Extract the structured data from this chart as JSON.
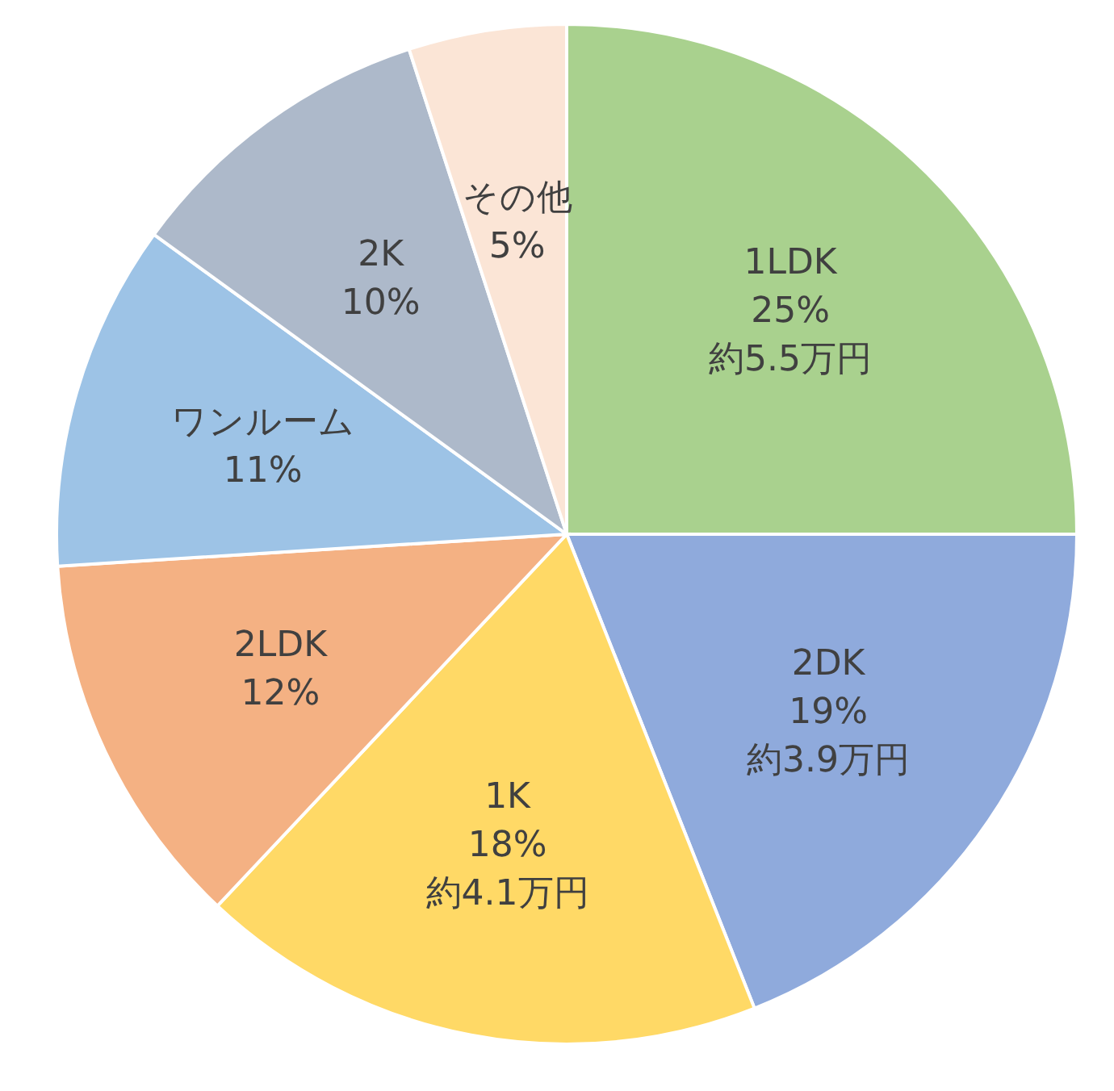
{
  "chart_data": {
    "type": "pie",
    "categories": [
      "1LDK",
      "2DK",
      "1K",
      "2LDK",
      "ワンルーム",
      "2K",
      "その他"
    ],
    "values": [
      25,
      19,
      18,
      12,
      11,
      10,
      5
    ],
    "colors": [
      "#a9d18e",
      "#8faadc",
      "#ffd966",
      "#f4b183",
      "#9dc3e6",
      "#adb9ca",
      "#fbe5d6"
    ],
    "value_labels": [
      "25%",
      "19%",
      "18%",
      "12%",
      "11%",
      "10%",
      "5%"
    ],
    "annotations": [
      {
        "text": "約5.5万円",
        "x": "1LDK"
      },
      {
        "text": "約3.9万円",
        "x": "2DK"
      },
      {
        "text": "約4.1万円",
        "x": "1K"
      }
    ],
    "legend": false
  }
}
